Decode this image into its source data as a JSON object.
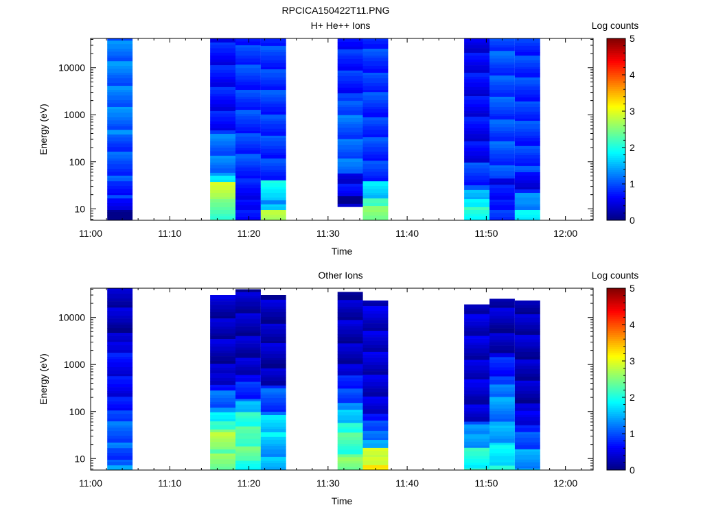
{
  "figure_title": "RPCICA150422T11.PNG",
  "colors": {
    "colormap": [
      "#00007f",
      "#0000ff",
      "#007fff",
      "#00ffff",
      "#7fff7f",
      "#ffff00",
      "#ff7f00",
      "#ff0000",
      "#7f0000"
    ],
    "background": "#ffffff",
    "axes": "#000000"
  },
  "chart_data": [
    {
      "type": "heatmap",
      "title": "H+ He++ Ions",
      "xlabel": "Time",
      "ylabel": "Energy (eV)",
      "x_ticks": [
        "11:00",
        "11:10",
        "11:20",
        "11:30",
        "11:40",
        "11:50",
        "12:00"
      ],
      "x_tick_minutes": [
        0,
        10,
        20,
        30,
        40,
        50,
        60
      ],
      "xlim_minutes": [
        0,
        63.5
      ],
      "y_scale": "log",
      "ylim": [
        5.7,
        42000
      ],
      "y_ticks": [
        "10",
        "100",
        "1000",
        "10000"
      ],
      "y_tick_values": [
        10,
        100,
        1000,
        10000
      ],
      "colorbar": {
        "label": "Log counts",
        "range": [
          0,
          5
        ],
        "ticks": [
          "0",
          "1",
          "2",
          "3",
          "4",
          "5"
        ]
      },
      "columns": [
        {
          "t_start": 2.1,
          "t_end": 5.3,
          "e_min": 5.7,
          "e_max": 42000,
          "bands": [
            [
              5.7,
              10,
              0.2
            ],
            [
              10,
              15,
              0.5
            ],
            [
              15,
              40,
              0.8
            ],
            [
              40,
              400,
              1.0
            ],
            [
              400,
              42000,
              1.2
            ]
          ]
        },
        {
          "t_start": 15.1,
          "t_end": 18.3,
          "e_min": 5.7,
          "e_max": 42000,
          "bands": [
            [
              5.7,
              16,
              2.3
            ],
            [
              16,
              35,
              2.9
            ],
            [
              35,
              55,
              1.6
            ],
            [
              55,
              65,
              1.8
            ],
            [
              65,
              400,
              1.2
            ],
            [
              400,
              42000,
              0.7
            ]
          ]
        },
        {
          "t_start": 18.3,
          "t_end": 21.5,
          "e_min": 5.7,
          "e_max": 42000,
          "bands": [
            [
              5.7,
              10,
              0.8
            ],
            [
              10,
              16,
              0.5
            ],
            [
              16,
              40,
              0.7
            ],
            [
              40,
              42000,
              0.9
            ]
          ]
        },
        {
          "t_start": 21.5,
          "t_end": 24.7,
          "e_min": 5.7,
          "e_max": 42000,
          "bands": [
            [
              5.7,
              10,
              2.8
            ],
            [
              10,
              16,
              1.5
            ],
            [
              16,
              40,
              1.8
            ],
            [
              40,
              42000,
              0.9
            ]
          ]
        },
        {
          "t_start": 31.2,
          "t_end": 34.4,
          "e_min": 11,
          "e_max": 42000,
          "bands": [
            [
              11,
              20,
              0.2
            ],
            [
              20,
              60,
              0.6
            ],
            [
              60,
              2000,
              1.1
            ],
            [
              2000,
              42000,
              0.8
            ]
          ]
        },
        {
          "t_start": 34.4,
          "t_end": 37.6,
          "e_min": 5.7,
          "e_max": 42000,
          "bands": [
            [
              5.7,
              10,
              2.5
            ],
            [
              10,
              16,
              2.4
            ],
            [
              16,
              22,
              1.6
            ],
            [
              22,
              40,
              1.6
            ],
            [
              40,
              42000,
              0.9
            ]
          ]
        },
        {
          "t_start": 47.2,
          "t_end": 50.4,
          "e_min": 5.7,
          "e_max": 42000,
          "bands": [
            [
              5.7,
              10,
              1.9
            ],
            [
              10,
              16,
              2.0
            ],
            [
              16,
              25,
              1.5
            ],
            [
              25,
              100,
              0.9
            ],
            [
              100,
              42000,
              0.6
            ]
          ]
        },
        {
          "t_start": 50.4,
          "t_end": 53.6,
          "e_min": 5.7,
          "e_max": 42000,
          "bands": [
            [
              5.7,
              10,
              0.8
            ],
            [
              10,
              16,
              0.9
            ],
            [
              16,
              40,
              0.6
            ],
            [
              40,
              42000,
              1.0
            ]
          ]
        },
        {
          "t_start": 53.6,
          "t_end": 56.8,
          "e_min": 5.7,
          "e_max": 42000,
          "bands": [
            [
              5.7,
              10,
              1.7
            ],
            [
              10,
              16,
              1.4
            ],
            [
              16,
              22,
              1.3
            ],
            [
              22,
              60,
              0.6
            ],
            [
              60,
              42000,
              0.9
            ]
          ]
        }
      ]
    },
    {
      "type": "heatmap",
      "title": "Other Ions",
      "xlabel": "Time",
      "ylabel": "Energy (eV)",
      "x_ticks": [
        "11:00",
        "11:10",
        "11:20",
        "11:30",
        "11:40",
        "11:50",
        "12:00"
      ],
      "x_tick_minutes": [
        0,
        10,
        20,
        30,
        40,
        50,
        60
      ],
      "xlim_minutes": [
        0,
        63.5
      ],
      "y_scale": "log",
      "ylim": [
        5.7,
        42000
      ],
      "y_ticks": [
        "10",
        "100",
        "1000",
        "10000"
      ],
      "y_tick_values": [
        10,
        100,
        1000,
        10000
      ],
      "colorbar": {
        "label": "Log counts",
        "range": [
          0,
          5
        ],
        "ticks": [
          "0",
          "1",
          "2",
          "3",
          "4",
          "5"
        ]
      },
      "columns": [
        {
          "t_start": 2.1,
          "t_end": 5.3,
          "e_min": 5.7,
          "e_max": 42000,
          "bands": [
            [
              5.7,
              10,
              1.3
            ],
            [
              10,
              16,
              0.9
            ],
            [
              16,
              100,
              1.1
            ],
            [
              100,
              3000,
              0.6
            ],
            [
              3000,
              42000,
              0.3
            ]
          ]
        },
        {
          "t_start": 15.1,
          "t_end": 18.3,
          "e_min": 5.7,
          "e_max": 30000,
          "bands": [
            [
              5.7,
              16,
              2.5
            ],
            [
              16,
              35,
              2.7
            ],
            [
              35,
              60,
              2.3
            ],
            [
              60,
              100,
              1.8
            ],
            [
              100,
              250,
              1.2
            ],
            [
              250,
              600,
              0.5
            ],
            [
              600,
              30000,
              0.3
            ]
          ]
        },
        {
          "t_start": 18.3,
          "t_end": 21.5,
          "e_min": 5.7,
          "e_max": 40000,
          "bands": [
            [
              5.7,
              10,
              2.1
            ],
            [
              10,
              30,
              2.3
            ],
            [
              30,
              100,
              2.2
            ],
            [
              100,
              200,
              1.4
            ],
            [
              200,
              600,
              0.8
            ],
            [
              600,
              40000,
              0.3
            ]
          ]
        },
        {
          "t_start": 21.5,
          "t_end": 24.7,
          "e_min": 5.7,
          "e_max": 30000,
          "bands": [
            [
              5.7,
              30,
              1.5
            ],
            [
              30,
              80,
              1.7
            ],
            [
              80,
              400,
              1.0
            ],
            [
              400,
              30000,
              0.3
            ]
          ]
        },
        {
          "t_start": 31.2,
          "t_end": 34.4,
          "e_min": 5.7,
          "e_max": 35000,
          "bands": [
            [
              5.7,
              10,
              2.5
            ],
            [
              10,
              60,
              2.2
            ],
            [
              60,
              150,
              1.5
            ],
            [
              150,
              600,
              0.9
            ],
            [
              600,
              35000,
              0.3
            ]
          ]
        },
        {
          "t_start": 34.4,
          "t_end": 37.6,
          "e_min": 5.7,
          "e_max": 23000,
          "bands": [
            [
              5.7,
              10,
              3.1
            ],
            [
              10,
              16,
              2.9
            ],
            [
              16,
              40,
              1.3
            ],
            [
              40,
              100,
              0.9
            ],
            [
              100,
              23000,
              0.4
            ]
          ]
        },
        {
          "t_start": 47.2,
          "t_end": 50.4,
          "e_min": 5.7,
          "e_max": 19000,
          "bands": [
            [
              5.7,
              16,
              2.0
            ],
            [
              16,
              35,
              1.5
            ],
            [
              35,
              60,
              1.2
            ],
            [
              60,
              19000,
              0.4
            ]
          ]
        },
        {
          "t_start": 50.4,
          "t_end": 53.6,
          "e_min": 5.7,
          "e_max": 25000,
          "bands": [
            [
              5.7,
              10,
              1.9
            ],
            [
              10,
              20,
              1.8
            ],
            [
              20,
              50,
              1.5
            ],
            [
              50,
              400,
              1.3
            ],
            [
              400,
              1500,
              0.8
            ],
            [
              1500,
              25000,
              0.3
            ]
          ]
        },
        {
          "t_start": 53.6,
          "t_end": 56.8,
          "e_min": 5.7,
          "e_max": 23000,
          "bands": [
            [
              5.7,
              16,
              1.4
            ],
            [
              16,
              40,
              1.1
            ],
            [
              40,
              100,
              0.6
            ],
            [
              100,
              23000,
              0.3
            ]
          ]
        }
      ]
    }
  ]
}
